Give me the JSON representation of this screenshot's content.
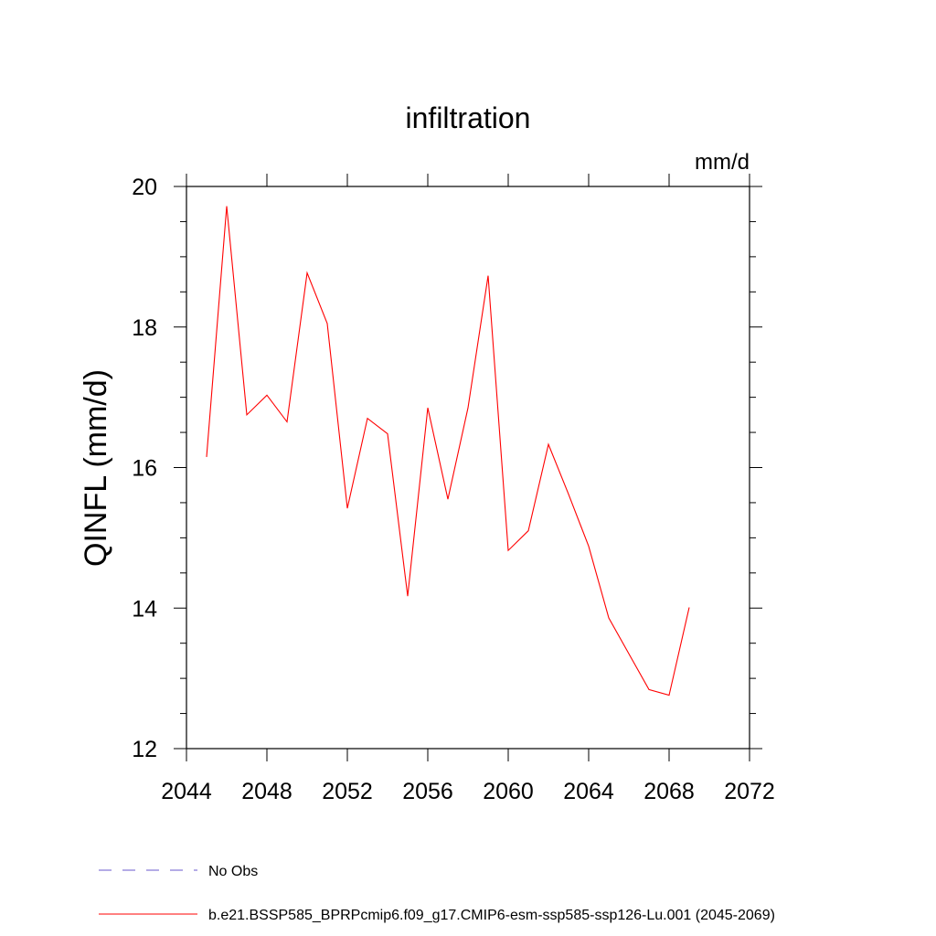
{
  "chart_data": {
    "type": "line",
    "title": "infiltration",
    "units_label": "mm/d",
    "ylabel": "QINFL  (mm/d)",
    "xlabel": "",
    "xlim": [
      2044,
      2072
    ],
    "ylim": [
      12,
      20
    ],
    "x_ticks": [
      2044,
      2048,
      2052,
      2056,
      2060,
      2064,
      2068,
      2072
    ],
    "y_ticks": [
      12,
      14,
      16,
      18,
      20
    ],
    "x_tick_labels": [
      "2044",
      "2048",
      "2052",
      "2056",
      "2060",
      "2064",
      "2068",
      "2072"
    ],
    "y_tick_labels": [
      "12",
      "14",
      "16",
      "18",
      "20"
    ],
    "grid": false,
    "series": [
      {
        "name": "b.e21.BSSP585_BPRPcmip6.f09_g17.CMIP6-esm-ssp585-ssp126-Lu.001 (2045-2069)",
        "color": "#ff0000",
        "x": [
          2045,
          2046,
          2047,
          2048,
          2049,
          2050,
          2051,
          2052,
          2053,
          2054,
          2055,
          2056,
          2057,
          2058,
          2059,
          2060,
          2061,
          2062,
          2063,
          2064,
          2065,
          2066,
          2067,
          2068,
          2069
        ],
        "values": [
          16.15,
          19.72,
          16.75,
          17.03,
          16.65,
          18.77,
          18.05,
          15.42,
          16.7,
          16.48,
          14.17,
          16.85,
          15.55,
          16.85,
          18.73,
          14.82,
          15.1,
          16.33,
          15.62,
          14.88,
          13.86,
          13.35,
          12.84,
          12.76,
          14.01
        ]
      }
    ],
    "legend": {
      "placement": "bottom-left",
      "entries": [
        {
          "label": "No Obs",
          "color": "#6a5acd",
          "style": "dashed"
        },
        {
          "label": "b.e21.BSSP585_BPRPcmip6.f09_g17.CMIP6-esm-ssp585-ssp126-Lu.001 (2045-2069)",
          "color": "#ff0000",
          "style": "solid"
        }
      ]
    }
  }
}
